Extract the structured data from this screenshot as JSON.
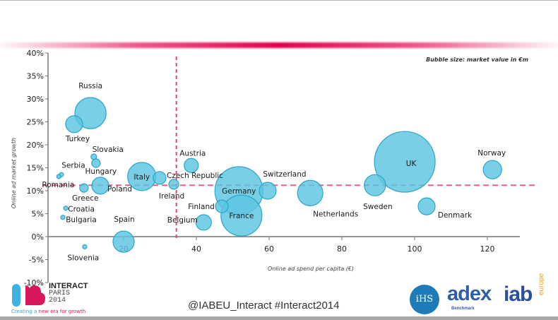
{
  "chart_data": {
    "type": "scatter",
    "subtype": "bubble",
    "title": "",
    "xlabel": "Online ad spend per capita (€)",
    "ylabel": "Online ad market growth",
    "annotation": "Bubble size: market value in €m",
    "xlim": [
      0,
      130
    ],
    "ylim": [
      -10,
      40
    ],
    "x_ticks": [
      20,
      40,
      60,
      80,
      100,
      120
    ],
    "y_ticks": [
      -10,
      -5,
      0,
      5,
      10,
      15,
      20,
      25,
      30,
      35,
      40
    ],
    "y_tick_labels": [
      "-10%",
      "-5%",
      "0%",
      "5%",
      "10%",
      "15%",
      "20%",
      "25%",
      "30%",
      "35%",
      "40%"
    ],
    "x_tick_labels": [
      "20",
      "40",
      "60",
      "80",
      "100",
      "120"
    ],
    "grid": false,
    "reference_lines": {
      "x": 34.5,
      "y": 11.2
    },
    "bubble_color": "#5cc4e0",
    "bubble_stroke": "#2aa6c8",
    "reference_color": "#e6417f",
    "points": [
      {
        "name": "Russia",
        "x": 10.9,
        "y": 26.9,
        "size": 22
      },
      {
        "name": "Turkey",
        "x": 6.4,
        "y": 24.5,
        "size": 12
      },
      {
        "name": "Slovakia",
        "x": 11.8,
        "y": 17.4,
        "size": 4
      },
      {
        "name": "Hungary",
        "x": 12.4,
        "y": 16.0,
        "size": 6
      },
      {
        "name": "Serbia",
        "x": 2.9,
        "y": 13.5,
        "size": 3
      },
      {
        "name": "Romania",
        "x": 2.2,
        "y": 13.1,
        "size": 3
      },
      {
        "name": "Greece",
        "x": 9.1,
        "y": 10.6,
        "size": 6
      },
      {
        "name": "Poland",
        "x": 13.6,
        "y": 11.1,
        "size": 12
      },
      {
        "name": "Croatia",
        "x": 4.1,
        "y": 6.2,
        "size": 3
      },
      {
        "name": "Bulgaria",
        "x": 3.3,
        "y": 4.2,
        "size": 3
      },
      {
        "name": "Slovenia",
        "x": 9.3,
        "y": -2.2,
        "size": 3
      },
      {
        "name": "Spain",
        "x": 20.0,
        "y": -1.1,
        "size": 15
      },
      {
        "name": "Italy",
        "x": 25.0,
        "y": 13.1,
        "size": 20
      },
      {
        "name": "Czech Republic",
        "x": 29.9,
        "y": 12.8,
        "size": 9
      },
      {
        "name": "Ireland",
        "x": 33.8,
        "y": 11.4,
        "size": 7
      },
      {
        "name": "Austria",
        "x": 38.6,
        "y": 15.5,
        "size": 10
      },
      {
        "name": "Belgium",
        "x": 42.0,
        "y": 3.1,
        "size": 11
      },
      {
        "name": "Finland",
        "x": 47.0,
        "y": 6.6,
        "size": 9
      },
      {
        "name": "Germany",
        "x": 51.7,
        "y": 10.0,
        "size": 34
      },
      {
        "name": "France",
        "x": 52.4,
        "y": 4.6,
        "size": 29
      },
      {
        "name": "Switzerland",
        "x": 59.6,
        "y": 10.0,
        "size": 12
      },
      {
        "name": "Netherlands",
        "x": 71.3,
        "y": 9.5,
        "size": 18
      },
      {
        "name": "Sweden",
        "x": 89.1,
        "y": 11.2,
        "size": 15
      },
      {
        "name": "UK",
        "x": 97.3,
        "y": 16.3,
        "size": 43
      },
      {
        "name": "Denmark",
        "x": 103.3,
        "y": 6.6,
        "size": 12
      },
      {
        "name": "Norway",
        "x": 121.4,
        "y": 14.6,
        "size": 13
      }
    ]
  },
  "footer": {
    "hashtag": "@IABEU_Interact #Interact2014",
    "event_name": "INTERACT",
    "event_city": "PARIS",
    "event_year": "2014",
    "tagline_a": "Creating a ",
    "tagline_b": "new era for growth",
    "ihs": "iHS",
    "adex": "adex",
    "adex_sub": "Benchmark",
    "iab": "iab",
    "iab_sub": "europe"
  }
}
